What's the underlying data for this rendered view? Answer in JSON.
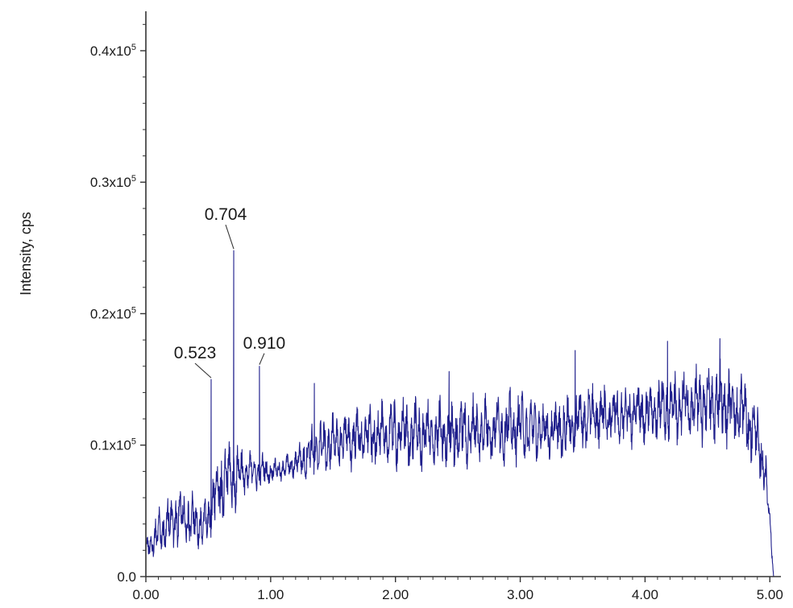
{
  "chart_data": {
    "type": "line",
    "title": "",
    "xlabel": "",
    "ylabel": "Intensity, cps",
    "xlim": [
      0,
      5.05
    ],
    "ylim": [
      0,
      43000
    ],
    "x_ticks": [
      {
        "value": 0,
        "label": "0.00"
      },
      {
        "value": 1,
        "label": "1.00"
      },
      {
        "value": 2,
        "label": "2.00"
      },
      {
        "value": 3,
        "label": "3.00"
      },
      {
        "value": 4,
        "label": "4.00"
      },
      {
        "value": 5,
        "label": "5.00"
      }
    ],
    "y_ticks": [
      {
        "value": 0,
        "label": "0.0"
      },
      {
        "value": 10000,
        "label": "0.1x10",
        "exp": "5"
      },
      {
        "value": 20000,
        "label": "0.2x10",
        "exp": "5"
      },
      {
        "value": 30000,
        "label": "0.3x10",
        "exp": "5"
      },
      {
        "value": 40000,
        "label": "0.4x10",
        "exp": "5"
      }
    ],
    "grid": false,
    "legend": "none",
    "line_color": "#1f1f8c",
    "series": [
      {
        "x": [
          0.0,
          0.05,
          0.1,
          0.15,
          0.2,
          0.25,
          0.3,
          0.35,
          0.4,
          0.45,
          0.5,
          0.55,
          0.6,
          0.65,
          0.7,
          0.75,
          0.8,
          0.85,
          0.9,
          0.95,
          1.0,
          1.1,
          1.2,
          1.3,
          1.4,
          1.5,
          1.6,
          1.7,
          1.8,
          1.9,
          2.0,
          2.1,
          2.2,
          2.3,
          2.4,
          2.5,
          2.6,
          2.7,
          2.8,
          2.9,
          3.0,
          3.1,
          3.2,
          3.3,
          3.4,
          3.5,
          3.6,
          3.7,
          3.8,
          3.9,
          4.0,
          4.1,
          4.2,
          4.3,
          4.4,
          4.5,
          4.6,
          4.7,
          4.8,
          4.9,
          4.95,
          5.0,
          5.03
        ],
        "y": [
          2000,
          2800,
          3200,
          3800,
          4200,
          4600,
          4500,
          4300,
          4000,
          3900,
          4300,
          6000,
          6800,
          7400,
          7700,
          7800,
          7900,
          8000,
          8000,
          8000,
          8000,
          8200,
          8600,
          9300,
          9800,
          10200,
          10500,
          10600,
          10700,
          10800,
          10900,
          10900,
          10800,
          10700,
          10800,
          11000,
          11000,
          11200,
          11300,
          11300,
          11400,
          11200,
          11100,
          11100,
          11500,
          12000,
          12200,
          12300,
          12400,
          12500,
          12600,
          12700,
          12800,
          12900,
          13000,
          13200,
          13300,
          12900,
          12300,
          10500,
          8500,
          4500,
          0
        ],
        "spread": [
          800,
          1500,
          2000,
          2200,
          2400,
          2600,
          2500,
          2400,
          2200,
          2100,
          2000,
          3200,
          3600,
          3400,
          3200,
          2600,
          2000,
          1600,
          1600,
          1400,
          1000,
          1000,
          1200,
          2200,
          2400,
          2400,
          2400,
          2600,
          2600,
          2800,
          3000,
          3000,
          3000,
          3000,
          3200,
          3200,
          3000,
          2800,
          2800,
          3000,
          3000,
          2800,
          2600,
          2600,
          2800,
          2800,
          2800,
          2800,
          2800,
          2800,
          2800,
          2800,
          3000,
          3200,
          3200,
          3400,
          3400,
          3400,
          3400,
          3000,
          2400,
          1500,
          0
        ]
      }
    ],
    "peaks": [
      {
        "x": 0.523,
        "y": 15000,
        "label": "0.523"
      },
      {
        "x": 0.704,
        "y": 24800,
        "label": "0.704"
      },
      {
        "x": 0.91,
        "y": 16000,
        "label": "0.910"
      }
    ],
    "minor_spikes": [
      {
        "x": 1.35,
        "y": 14700
      },
      {
        "x": 2.43,
        "y": 15600
      },
      {
        "x": 3.44,
        "y": 17200
      },
      {
        "x": 4.18,
        "y": 17900
      },
      {
        "x": 4.6,
        "y": 18100
      }
    ]
  }
}
